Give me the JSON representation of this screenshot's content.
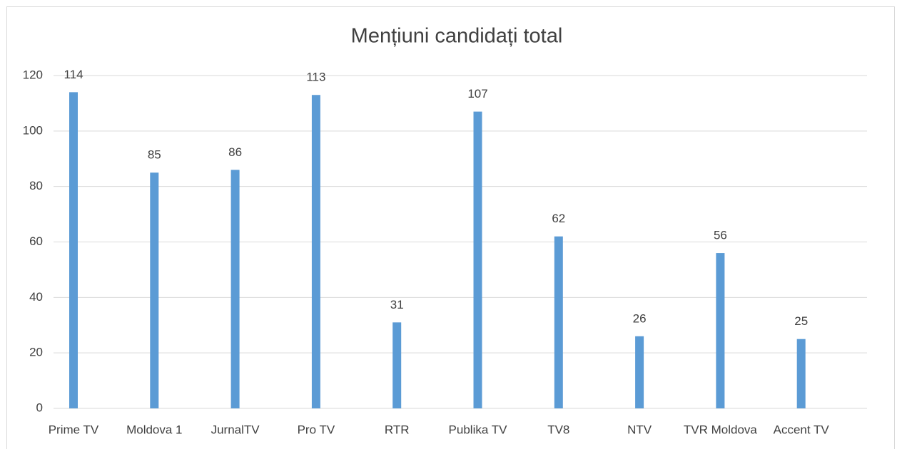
{
  "chart_data": {
    "type": "bar",
    "title": "Mențiuni candidați total",
    "categories": [
      "Prime TV",
      "Moldova 1",
      "JurnalTV",
      "Pro TV",
      "RTR",
      "Publika TV",
      "TV8",
      "NTV",
      "TVR Moldova",
      "Accent TV"
    ],
    "values": [
      114,
      85,
      86,
      113,
      31,
      107,
      62,
      26,
      56,
      25
    ],
    "color": "#5b9bd5",
    "ylim": [
      0,
      120
    ],
    "yticks": [
      0,
      20,
      40,
      60,
      80,
      100,
      120
    ],
    "grid": true
  }
}
